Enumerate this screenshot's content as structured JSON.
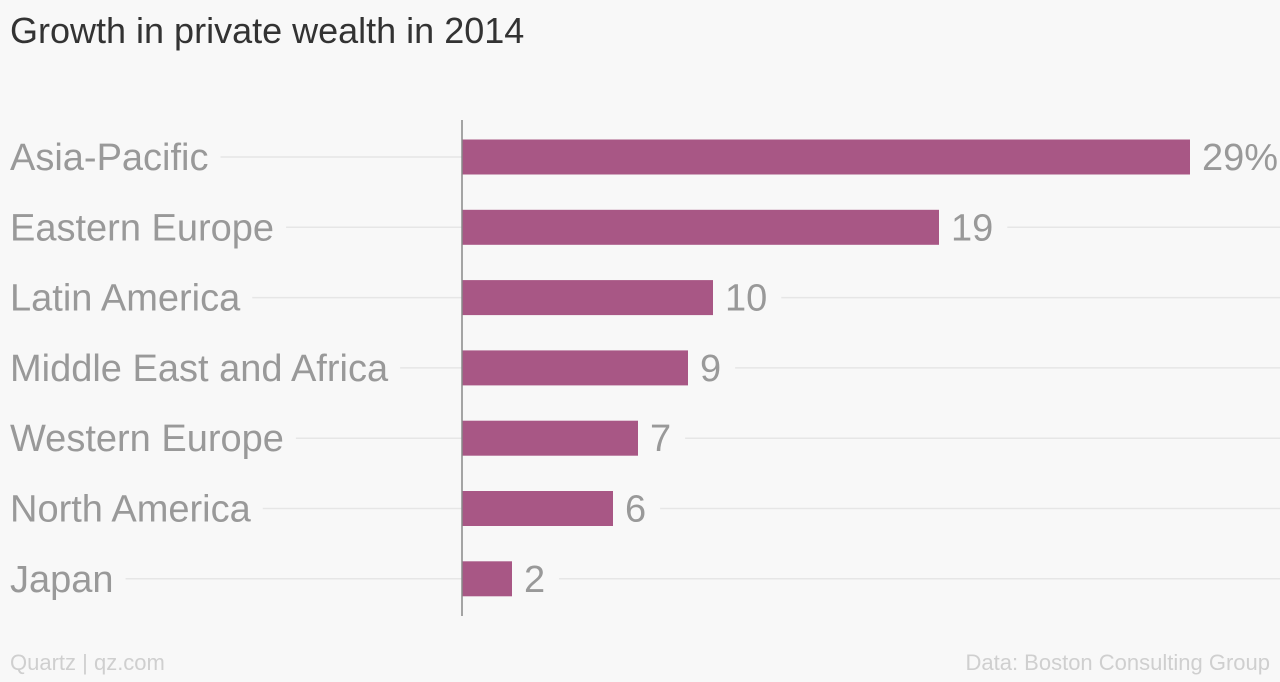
{
  "title": "Growth in private wealth in 2014",
  "footer": {
    "credit": "Quartz | qz.com",
    "source": "Data: Boston Consulting Group"
  },
  "colors": {
    "bar": "#a85785",
    "label": "#999999",
    "gridline": "#e6e6e6",
    "axis": "#888888"
  },
  "chart_data": {
    "type": "bar",
    "orientation": "horizontal",
    "categories": [
      "Asia-Pacific",
      "Eastern Europe",
      "Latin America",
      "Middle East and Africa",
      "Western Europe",
      "North America",
      "Japan"
    ],
    "values": [
      29,
      19,
      10,
      9,
      7,
      6,
      2
    ],
    "value_labels": [
      "29%",
      "19",
      "10",
      "9",
      "7",
      "6",
      "2"
    ],
    "unit": "%",
    "xlim": [
      0,
      29
    ],
    "grid": true,
    "legend": "none"
  }
}
